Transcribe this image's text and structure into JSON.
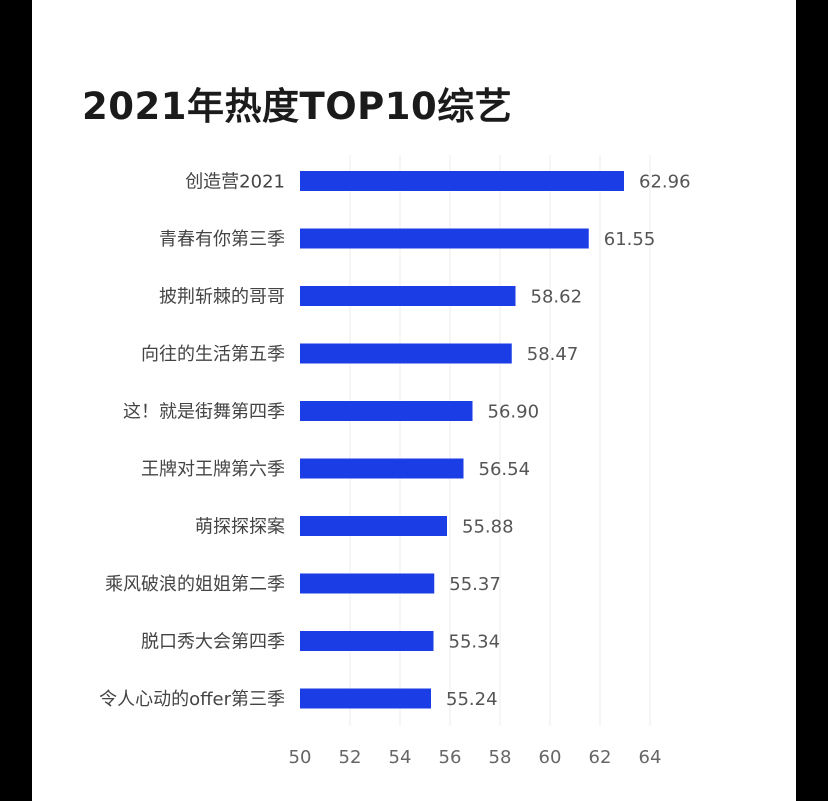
{
  "chart_data": {
    "type": "bar",
    "orientation": "horizontal",
    "title": "2021年热度TOP10综艺",
    "categories": [
      "创造营2021",
      "青春有你第三季",
      "披荆斩棘的哥哥",
      "向往的生活第五季",
      "这！就是街舞第四季",
      "王牌对王牌第六季",
      "萌探探探案",
      "乘风破浪的姐姐第二季",
      "脱口秀大会第四季",
      "令人心动的offer第三季"
    ],
    "values": [
      62.96,
      61.55,
      58.62,
      58.47,
      56.9,
      56.54,
      55.88,
      55.37,
      55.34,
      55.24
    ],
    "value_labels": [
      "62.96",
      "61.55",
      "58.62",
      "58.47",
      "56.90",
      "56.54",
      "55.88",
      "55.37",
      "55.34",
      "55.24"
    ],
    "xlim": [
      50,
      64
    ],
    "x_ticks": [
      "50",
      "52",
      "54",
      "56",
      "58",
      "60",
      "62",
      "64"
    ],
    "xlabel": "",
    "ylabel": "",
    "grid": true,
    "bar_color": "#1b3de6",
    "grid_color": "#eeeeee"
  }
}
